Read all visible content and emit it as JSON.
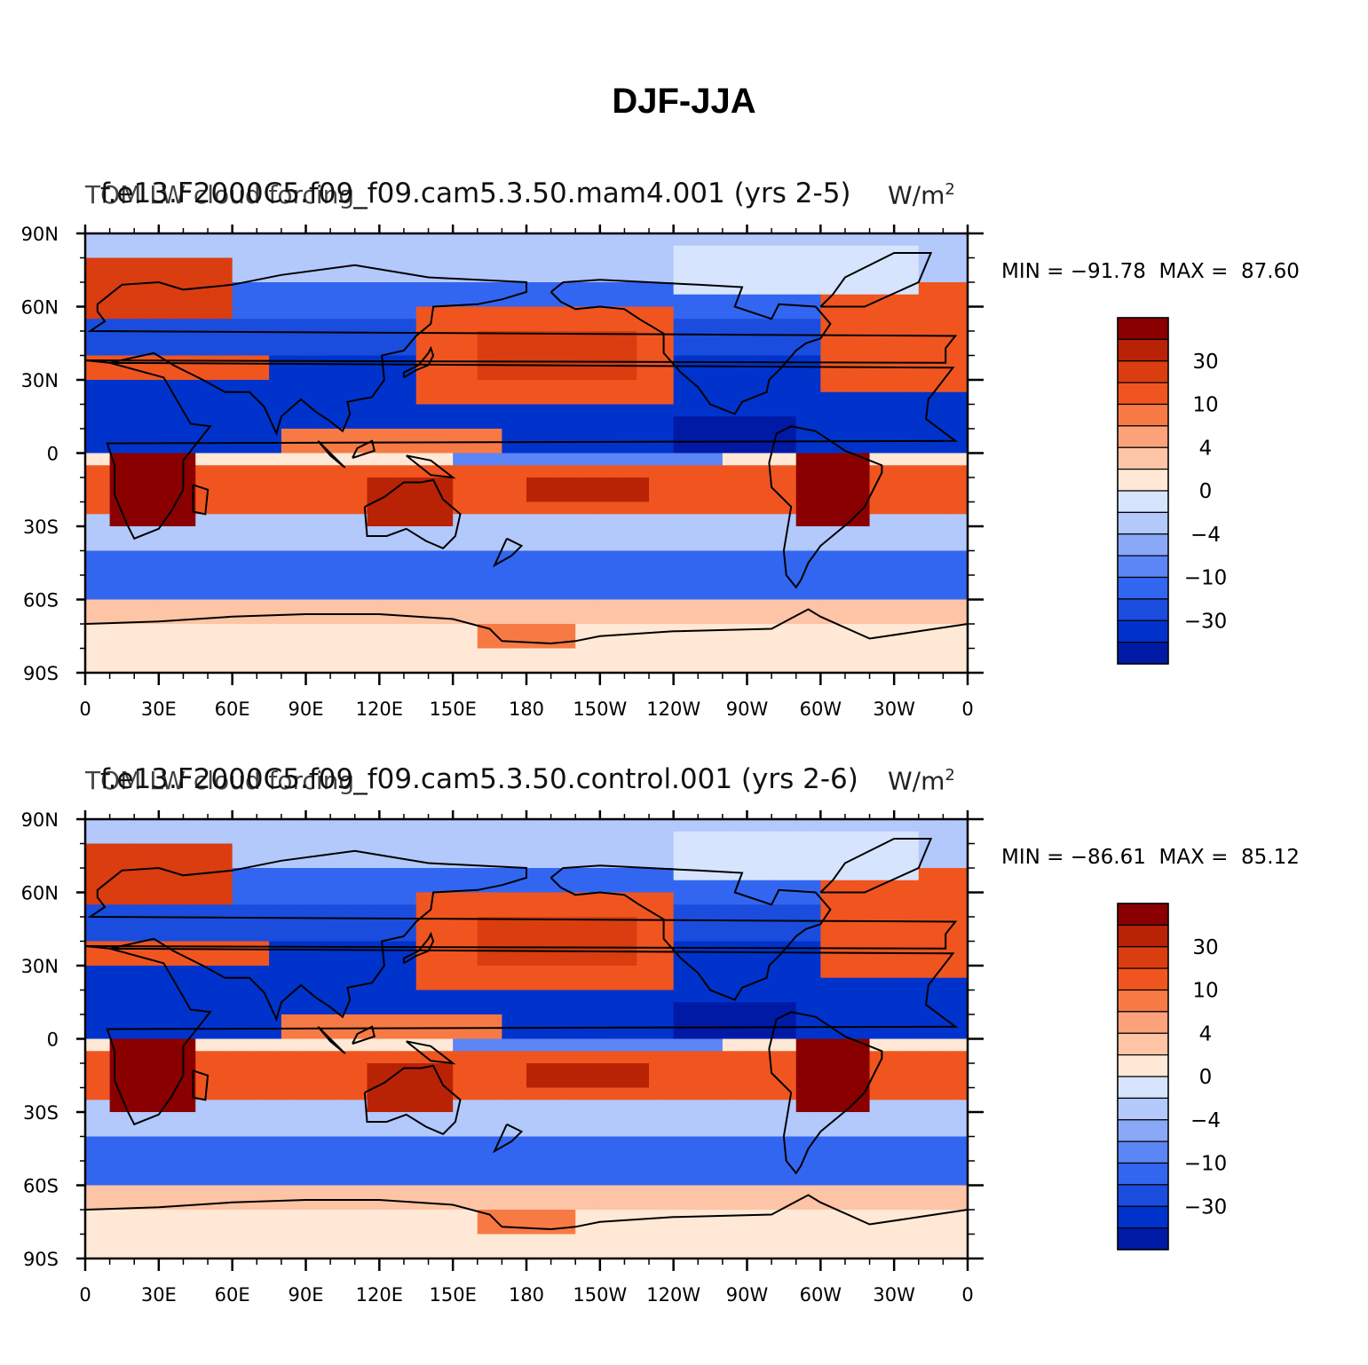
{
  "title": "DJF-JJA",
  "colors": {
    "levels": [
      "#000080",
      "#001aa6",
      "#0033cc",
      "#1a4dde",
      "#3366f0",
      "#5c85f5",
      "#8aa8f8",
      "#b3c8fb",
      "#d6e4fd",
      "#ffe8d6",
      "#fdc4a6",
      "#fca27a",
      "#f77a45",
      "#f05520",
      "#d93d10",
      "#b82205",
      "#8a0000"
    ],
    "land_line": "#000000"
  },
  "colorbar": {
    "labels": [
      "30",
      "10",
      "4",
      "0",
      "−4",
      "−10",
      "−30"
    ]
  },
  "axes": {
    "lat_labels": [
      "90N",
      "60N",
      "30N",
      "0",
      "30S",
      "60S",
      "90S"
    ],
    "lon_labels": [
      "0",
      "30E",
      "60E",
      "90E",
      "120E",
      "150E",
      "180",
      "150W",
      "120W",
      "90W",
      "60W",
      "30W",
      "0"
    ]
  },
  "panels": [
    {
      "id": "top",
      "title_left": "TOM 1.9F2000C5.f09_f09.cam5.3.50.mam4.001 (yrs 2-5)",
      "title_center": "f.e13.F2000C5.f09_f09.cam5.3.50.mam4.001 (yrs 2-5)",
      "title_left_short": "TOM LW cloud forcing",
      "title_right_unit": "W/m",
      "title_right_exp": "2",
      "min_label": "MIN = −91.78",
      "max_label": "MAX =  87.60"
    },
    {
      "id": "bottom",
      "title_left": "TOM 1.9F2000C5.f09_f09.cam5.3.50.control.001 (yrs 2-6)",
      "title_center": "f.e13.F2000C5.f09_f09.cam5.3.50.control.001 (yrs 2-6)",
      "title_left_short": "TOM LW cloud forcing",
      "title_right_unit": "W/m",
      "title_right_exp": "2",
      "min_label": "MIN = −86.61",
      "max_label": "MAX =  85.12"
    }
  ]
}
